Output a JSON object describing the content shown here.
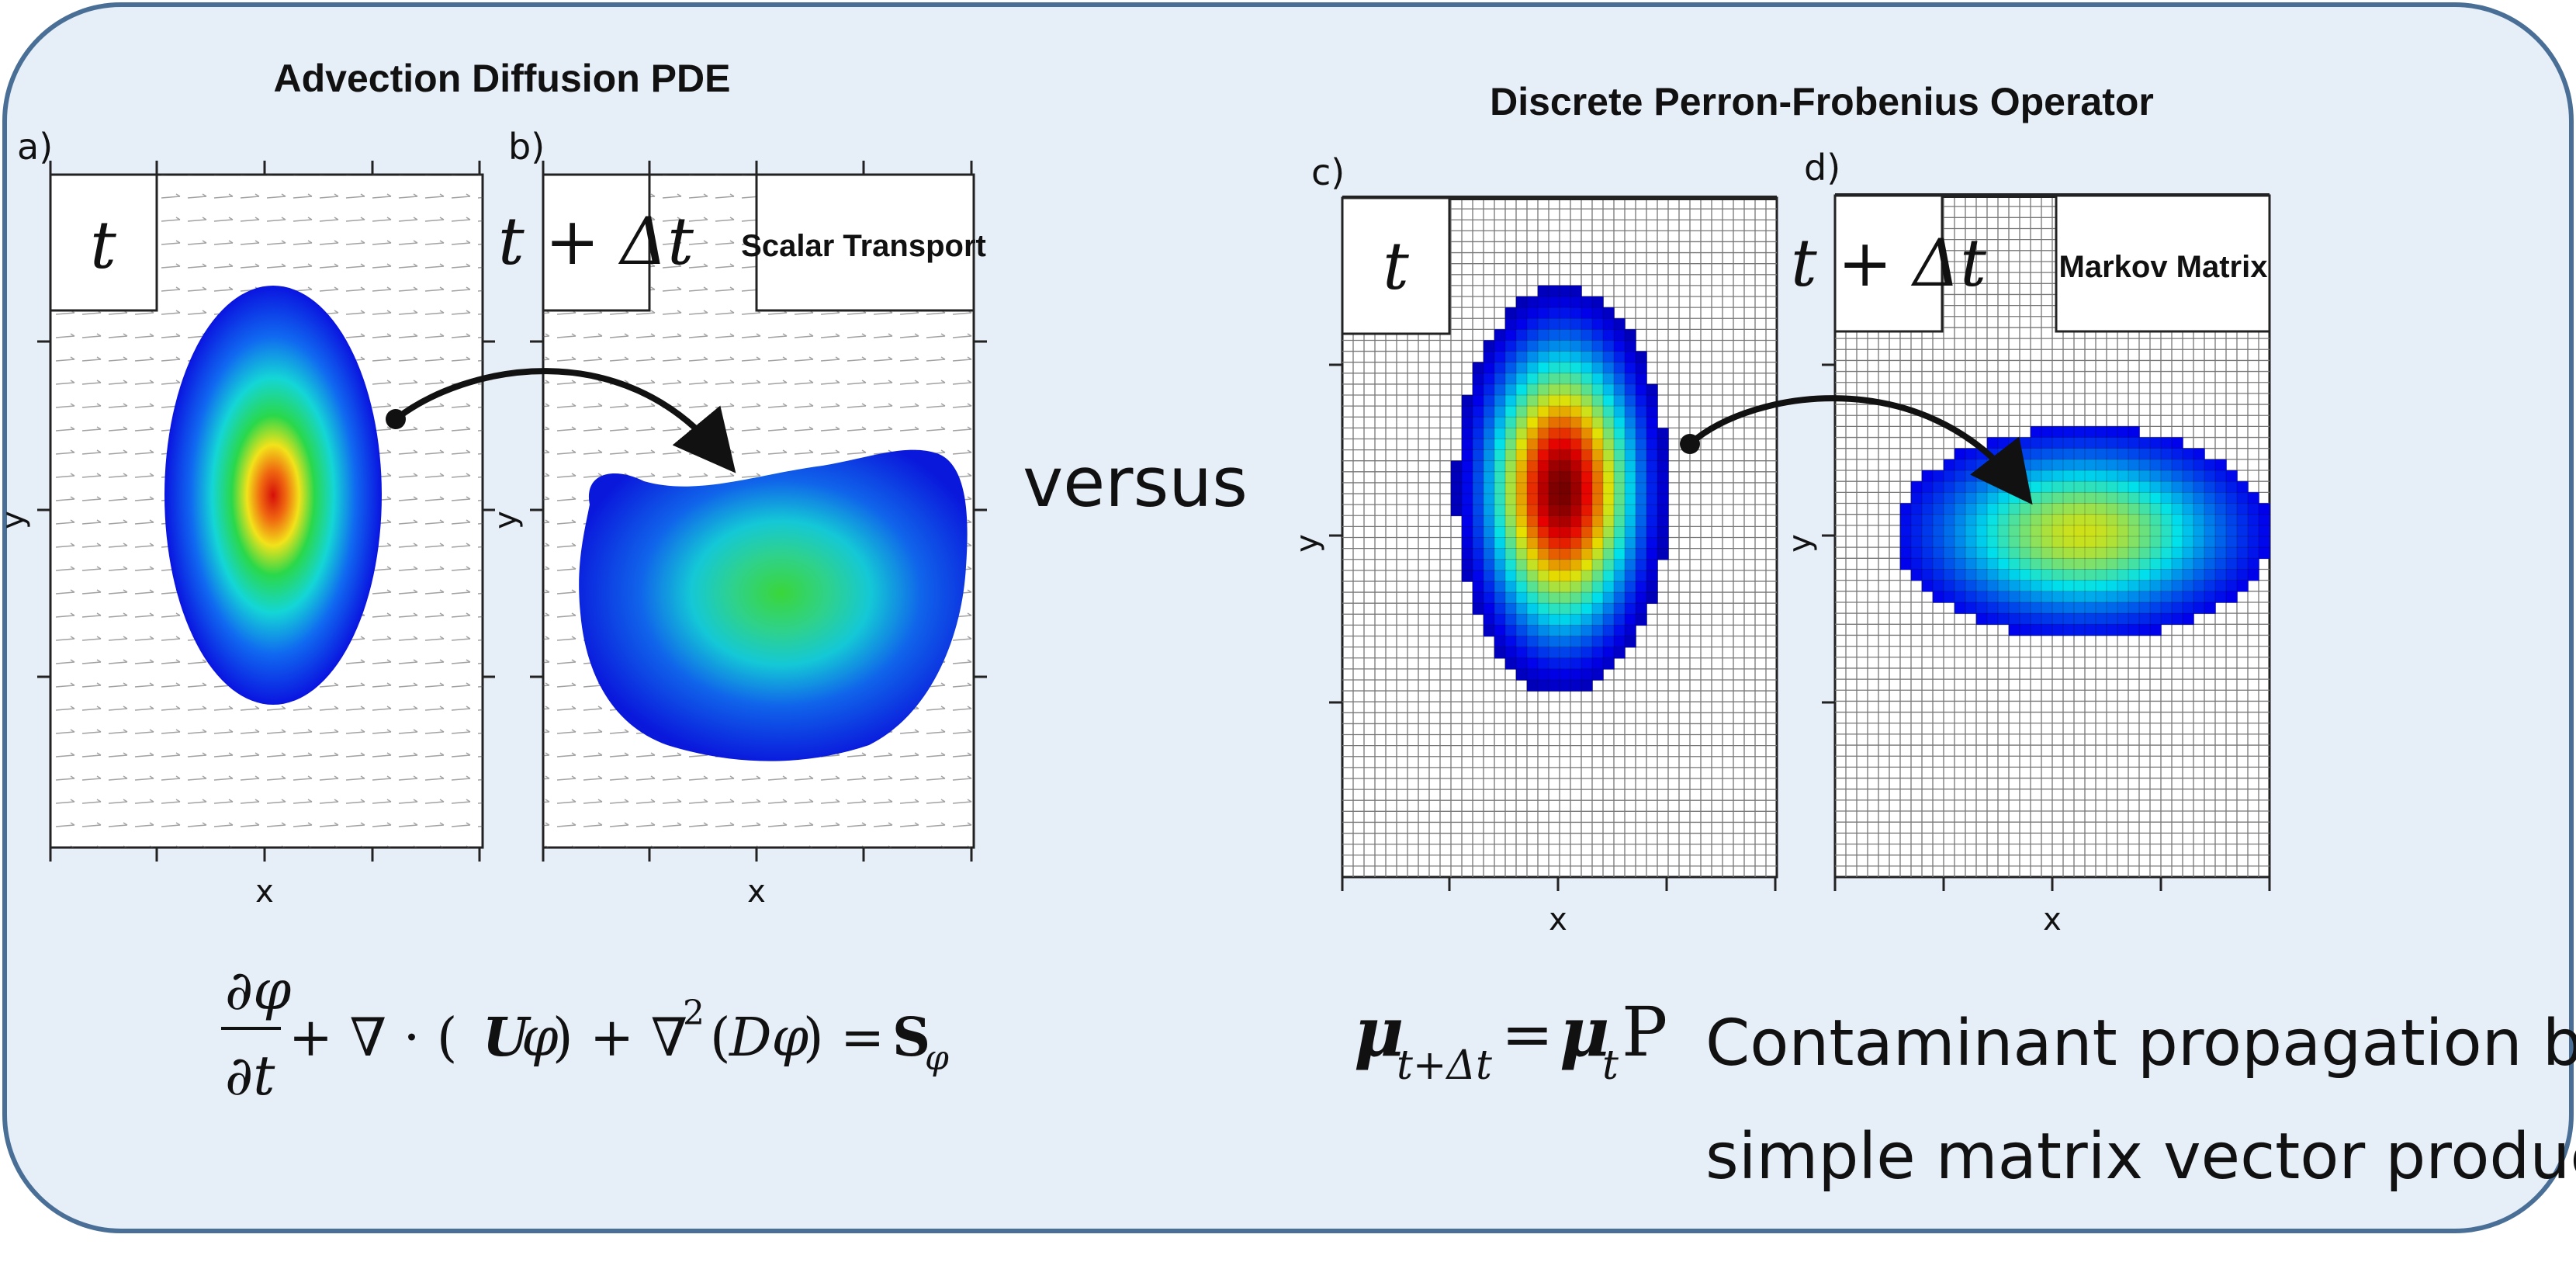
{
  "section_left": {
    "title": "Advection Diffusion PDE"
  },
  "section_right": {
    "title": "Discrete Perron-Frobenius Operator"
  },
  "versus": "versus",
  "panels": [
    {
      "id": "a",
      "label": "a)",
      "time": "t",
      "box_label": "",
      "xlabel": "x",
      "ylabel": "y"
    },
    {
      "id": "b",
      "label": "b)",
      "time": "t + Δt",
      "box_label": "Scalar Transport",
      "xlabel": "x",
      "ylabel": "y"
    },
    {
      "id": "c",
      "label": "c)",
      "time": "t",
      "box_label": "",
      "xlabel": "x",
      "ylabel": "y"
    },
    {
      "id": "d",
      "label": "d)",
      "time": "t + Δt",
      "box_label": "Markov Matrix",
      "xlabel": "x",
      "ylabel": "y"
    }
  ],
  "equations": {
    "pde": "∂φ/∂t + ∇·(Uφ) + ∇²(Dφ) = Sφ",
    "markov": "μ(t+Δt) = μ(t) P"
  },
  "note": {
    "line1": "Contaminant propagation becomes",
    "line2": "simple matrix vector product"
  },
  "colors": {
    "frame_fill": "#e6eef7",
    "frame_stroke": "#4a6f96",
    "jet_low": "#0a19e6",
    "jet_mid": "#22d84a",
    "jet_high": "#d0150d"
  }
}
